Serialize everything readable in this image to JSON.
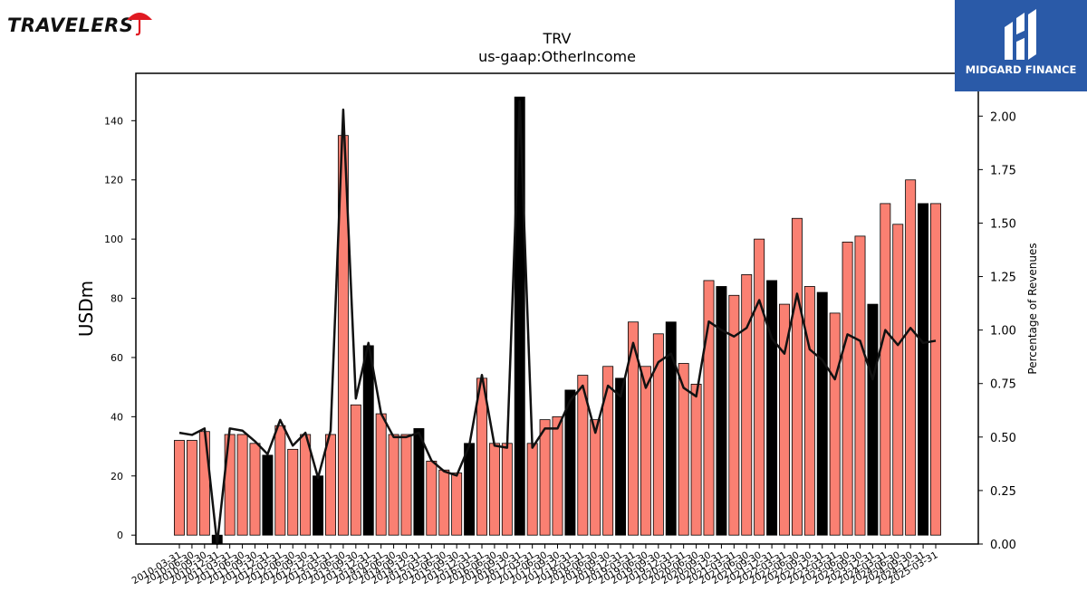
{
  "brands": {
    "left": {
      "name": "TRAVELERS",
      "icon": "umbrella-icon",
      "icon_color": "#e01a22"
    },
    "right": {
      "name": "MIDGARD FINANCE",
      "icon": "midgard-logo-icon",
      "bg_color": "#2a5aa8"
    }
  },
  "chart_data": {
    "type": "bar",
    "title": "TRV",
    "subtitle": "us-gaap:OtherIncome",
    "ylabel": "USDm",
    "y2label": "Percentage of Revenues",
    "ylim": [
      -3,
      156
    ],
    "y2lim": [
      0,
      2.2
    ],
    "yticks": [
      0,
      20,
      40,
      60,
      80,
      100,
      120,
      140
    ],
    "y2ticks": [
      "0.00",
      "0.25",
      "0.50",
      "0.75",
      "1.00",
      "1.25",
      "1.50",
      "1.75",
      "2.00"
    ],
    "grid": false,
    "colors": {
      "bar": "#fa8072",
      "bar_highlight": "#000000",
      "line": "#111111"
    },
    "categories": [
      "2010-03-31",
      "2010-06-30",
      "2010-09-30",
      "2010-12-31",
      "2011-03-31",
      "2011-06-30",
      "2011-09-30",
      "2011-12-31",
      "2012-03-31",
      "2012-06-30",
      "2012-09-30",
      "2012-12-31",
      "2013-03-31",
      "2013-06-30",
      "2013-09-30",
      "2013-12-31",
      "2014-03-31",
      "2014-06-30",
      "2014-09-30",
      "2014-12-31",
      "2015-03-31",
      "2015-06-30",
      "2015-09-30",
      "2015-12-31",
      "2016-03-31",
      "2016-06-30",
      "2016-09-30",
      "2016-12-31",
      "2017-03-31",
      "2017-06-30",
      "2017-09-30",
      "2017-12-31",
      "2018-03-31",
      "2018-06-30",
      "2018-09-30",
      "2018-12-31",
      "2019-03-31",
      "2019-06-30",
      "2019-09-30",
      "2019-12-31",
      "2020-03-31",
      "2020-06-30",
      "2020-09-30",
      "2020-12-31",
      "2021-03-31",
      "2021-06-30",
      "2021-09-30",
      "2021-12-31",
      "2022-03-31",
      "2022-06-30",
      "2022-09-30",
      "2022-12-31",
      "2023-03-31",
      "2023-06-30",
      "2023-09-30",
      "2023-12-31",
      "2024-03-31",
      "2024-06-30",
      "2024-09-30",
      "2024-12-31",
      "2025-03-31"
    ],
    "tick_labels": [
      "2010-03-31",
      "2010-06-30",
      "2010-09-30",
      "2010-12-31",
      "2011-03-31",
      "2011-06-30",
      "2011-09-30",
      "2011-12-31",
      "2012-03-31",
      "2012-06-30",
      "2012-09-30",
      "2012-12-31",
      "2013-03-31",
      "2013-06-30",
      "2013-09-30",
      "2013-12-31",
      "2014-03-31",
      "2014-06-30",
      "2014-09-30",
      "2014-12-31",
      "2015-03-31",
      "2015-06-30",
      "2015-09-30",
      "2015-12-31",
      "2016-03-31",
      "2016-06-30",
      "2016-09-30",
      "2016-12-31",
      "2017-03-31",
      "2017-06-30",
      "2017-09-30",
      "2017-12-31",
      "2018-03-31",
      "2018-06-30",
      "2018-09-30",
      "2018-12-31",
      "2019-03-31",
      "2019-06-30",
      "2019-09-30",
      "2019-12-31",
      "2020-03-31",
      "2020-06-30",
      "2020-09-30",
      "2020-12-31",
      "2021-03-31",
      "2021-06-30",
      "2021-09-30",
      "2021-12-31",
      "2022-03-31",
      "2022-06-30",
      "2022-09-30",
      "2022-12-31",
      "2023-03-31",
      "2023-06-30",
      "2023-09-30",
      "2023-12-31",
      "2024-03-31",
      "2024-06-30",
      "2024-09-30",
      "2024-12-31",
      "2025-03-31"
    ],
    "series": [
      {
        "axis": "left",
        "kind": "bar",
        "values": [
          32,
          32,
          35,
          -3,
          34,
          34,
          31,
          27,
          37,
          29,
          34,
          20,
          34,
          135,
          44,
          64,
          41,
          34,
          34,
          36,
          25,
          22,
          21,
          31,
          53,
          31,
          31,
          148,
          31,
          39,
          40,
          49,
          54,
          39,
          57,
          53,
          72,
          57,
          68,
          72,
          58,
          51,
          86,
          84,
          81,
          88,
          100,
          86,
          78,
          107,
          84,
          82,
          75,
          99,
          101,
          78,
          112,
          105,
          120,
          112,
          112
        ],
        "highlight": [
          false,
          false,
          false,
          true,
          false,
          false,
          false,
          true,
          false,
          false,
          false,
          true,
          false,
          false,
          false,
          true,
          false,
          false,
          false,
          true,
          false,
          false,
          false,
          true,
          false,
          false,
          false,
          true,
          false,
          false,
          false,
          true,
          false,
          false,
          false,
          true,
          false,
          false,
          false,
          true,
          false,
          false,
          false,
          true,
          false,
          false,
          false,
          true,
          false,
          false,
          false,
          true,
          false,
          false,
          false,
          true,
          false,
          false,
          false,
          true,
          false
        ]
      },
      {
        "axis": "right",
        "kind": "line",
        "values": [
          0.52,
          0.51,
          0.54,
          0.0,
          0.54,
          0.53,
          0.48,
          0.42,
          0.58,
          0.46,
          0.52,
          0.31,
          0.53,
          2.03,
          0.68,
          0.94,
          0.61,
          0.5,
          0.5,
          0.52,
          0.39,
          0.34,
          0.32,
          0.46,
          0.79,
          0.46,
          0.45,
          2.07,
          0.45,
          0.54,
          0.54,
          0.67,
          0.74,
          0.52,
          0.74,
          0.69,
          0.94,
          0.73,
          0.85,
          0.89,
          0.73,
          0.69,
          1.04,
          1.0,
          0.97,
          1.01,
          1.14,
          0.96,
          0.89,
          1.17,
          0.91,
          0.86,
          0.77,
          0.98,
          0.95,
          0.77,
          1.0,
          0.93,
          1.01,
          0.94,
          0.95
        ]
      }
    ]
  }
}
